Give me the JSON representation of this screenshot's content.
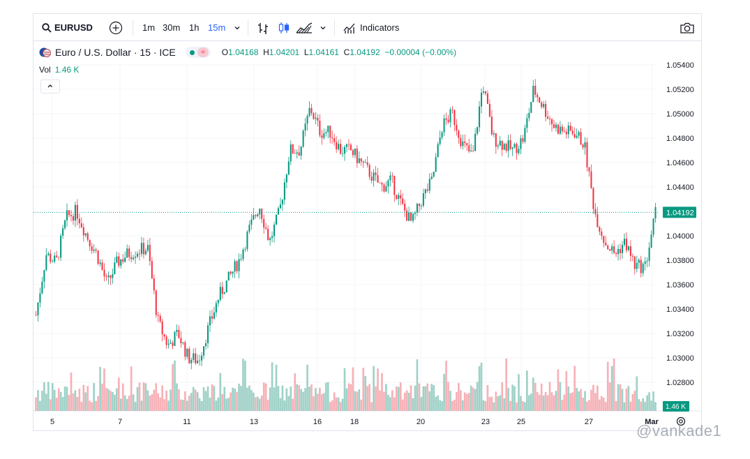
{
  "toolbar": {
    "symbol": "EURUSD",
    "timeframes": [
      "1m",
      "30m",
      "1h",
      "15m"
    ],
    "active_timeframe": "15m",
    "indicators_label": "Indicators"
  },
  "legend": {
    "instrument": "Euro / U.S. Dollar · 15 · ICE",
    "open_label": "O",
    "open": "1.04168",
    "high_label": "H",
    "high": "1.04201",
    "low_label": "L",
    "low": "1.04161",
    "close_label": "C",
    "close": "1.04192",
    "change": "−0.00004 (−0.00%)"
  },
  "volume": {
    "label": "Vol",
    "value": "1.46 K",
    "axis_badge": "1.46 K"
  },
  "price_axis": {
    "ticks": [
      "1.05400",
      "1.05200",
      "1.05000",
      "1.04800",
      "1.04600",
      "1.04400",
      "1.04000",
      "1.03800",
      "1.03600",
      "1.03400",
      "1.03200",
      "1.03000",
      "1.02800",
      "0"
    ],
    "current_price": "1.04192"
  },
  "time_axis": {
    "labels": [
      "5",
      "7",
      "11",
      "13",
      "16",
      "18",
      "20",
      "23",
      "25",
      "27",
      "Mar"
    ]
  },
  "watermark": "@vankade1",
  "colors": {
    "up": "#089981",
    "down": "#f23645",
    "accent": "#2962ff",
    "up_vol": "#8ec9bd",
    "down_vol": "#f5a3aa"
  },
  "chart_data": {
    "type": "candlestick",
    "symbol": "EURUSD",
    "interval": "15",
    "y_range": [
      1.027,
      1.055
    ],
    "y_ticks": [
      1.028,
      1.03,
      1.032,
      1.034,
      1.036,
      1.038,
      1.04,
      1.042,
      1.044,
      1.046,
      1.048,
      1.05,
      1.052,
      1.054
    ],
    "x_labels": [
      "5",
      "7",
      "11",
      "13",
      "16",
      "18",
      "20",
      "23",
      "25",
      "27",
      "Mar"
    ],
    "close_path": [
      [
        "4",
        1.0335
      ],
      [
        "4",
        1.0385
      ],
      [
        "5",
        1.0378
      ],
      [
        "5",
        1.0415
      ],
      [
        "5",
        1.042
      ],
      [
        "6",
        1.04
      ],
      [
        "6",
        1.0385
      ],
      [
        "6",
        1.036
      ],
      [
        "7",
        1.0378
      ],
      [
        "7",
        1.0385
      ],
      [
        "7",
        1.0388
      ],
      [
        "7",
        1.039
      ],
      [
        "10",
        1.033
      ],
      [
        "10",
        1.031
      ],
      [
        "10",
        1.032
      ],
      [
        "11",
        1.03
      ],
      [
        "11",
        1.0298
      ],
      [
        "11",
        1.0325
      ],
      [
        "12",
        1.035
      ],
      [
        "12",
        1.0365
      ],
      [
        "12",
        1.038
      ],
      [
        "13",
        1.0405
      ],
      [
        "13",
        1.0425
      ],
      [
        "13",
        1.0395
      ],
      [
        "14",
        1.042
      ],
      [
        "14",
        1.047
      ],
      [
        "14",
        1.047
      ],
      [
        "14",
        1.0505
      ],
      [
        "17",
        1.0485
      ],
      [
        "17",
        1.0485
      ],
      [
        "17",
        1.047
      ],
      [
        "18",
        1.047
      ],
      [
        "18",
        1.046
      ],
      [
        "18",
        1.045
      ],
      [
        "19",
        1.044
      ],
      [
        "19",
        1.0445
      ],
      [
        "19",
        1.0425
      ],
      [
        "20",
        1.041
      ],
      [
        "20",
        1.043
      ],
      [
        "20",
        1.0445
      ],
      [
        "21",
        1.049
      ],
      [
        "21",
        1.05
      ],
      [
        "21",
        1.0475
      ],
      [
        "24",
        1.0465
      ],
      [
        "24",
        1.0525
      ],
      [
        "24",
        1.048
      ],
      [
        "25",
        1.0475
      ],
      [
        "25",
        1.047
      ],
      [
        "25",
        1.048
      ],
      [
        "26",
        1.052
      ],
      [
        "26",
        1.0505
      ],
      [
        "26",
        1.049
      ],
      [
        "27",
        1.0485
      ],
      [
        "27",
        1.0485
      ],
      [
        "27",
        1.0475
      ],
      [
        "27",
        1.042
      ],
      [
        "28",
        1.0395
      ],
      [
        "28",
        1.0385
      ],
      [
        "28",
        1.0395
      ],
      [
        "28",
        1.0375
      ],
      [
        "Mar",
        1.0375
      ],
      [
        "Mar",
        1.0419
      ]
    ],
    "last_price": 1.04192,
    "volume_last": "1.46 K"
  }
}
